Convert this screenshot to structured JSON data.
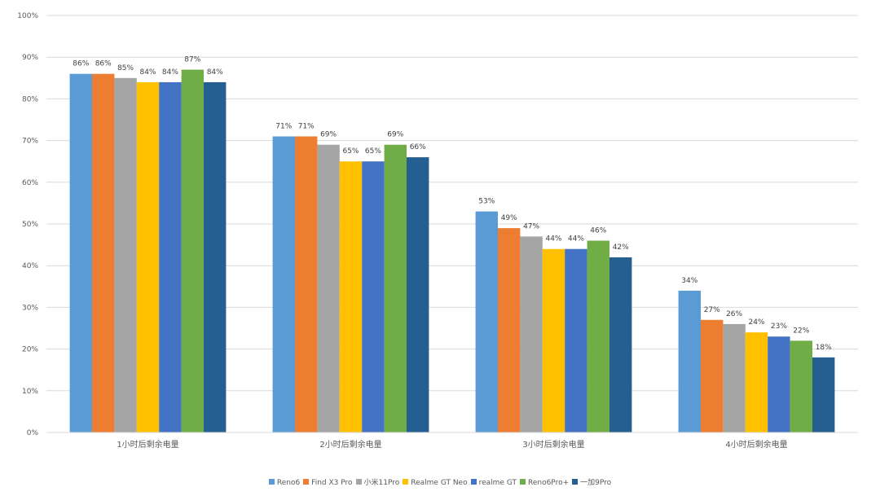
{
  "chart_data": {
    "type": "bar",
    "title": "",
    "xlabel": "",
    "ylabel": "",
    "ylim": [
      0,
      100
    ],
    "y_ticks": [
      "0%",
      "10%",
      "20%",
      "30%",
      "40%",
      "50%",
      "60%",
      "70%",
      "80%",
      "90%",
      "100%"
    ],
    "y_tick_values": [
      0,
      10,
      20,
      30,
      40,
      50,
      60,
      70,
      80,
      90,
      100
    ],
    "grid": true,
    "legend_position": "bottom",
    "categories": [
      "1小时后剩余电量",
      "2小时后剩余电量",
      "3小时后剩余电量",
      "4小时后剩余电量"
    ],
    "series": [
      {
        "name": "Reno6",
        "color": "#5B9BD5",
        "values": [
          86,
          71,
          53,
          34
        ],
        "labels": [
          "86%",
          "71%",
          "53%",
          "34%"
        ]
      },
      {
        "name": "Find X3 Pro",
        "color": "#ED7D31",
        "values": [
          86,
          71,
          49,
          27
        ],
        "labels": [
          "86%",
          "71%",
          "49%",
          "27%"
        ]
      },
      {
        "name": "小米11Pro",
        "color": "#A5A5A5",
        "values": [
          85,
          69,
          47,
          26
        ],
        "labels": [
          "85%",
          "69%",
          "47%",
          "26%"
        ]
      },
      {
        "name": "Realme GT Neo",
        "color": "#FFC000",
        "values": [
          84,
          65,
          44,
          24
        ],
        "labels": [
          "84%",
          "65%",
          "44%",
          "24%"
        ]
      },
      {
        "name": "realme GT",
        "color": "#4472C4",
        "values": [
          84,
          65,
          44,
          23
        ],
        "labels": [
          "84%",
          "65%",
          "44%",
          "23%"
        ]
      },
      {
        "name": "Reno6Pro+",
        "color": "#70AD47",
        "values": [
          87,
          69,
          46,
          22
        ],
        "labels": [
          "87%",
          "69%",
          "46%",
          "22%"
        ]
      },
      {
        "name": "一加9Pro",
        "color": "#255E91",
        "values": [
          84,
          66,
          42,
          18
        ],
        "labels": [
          "84%",
          "66%",
          "42%",
          "18%"
        ]
      }
    ]
  }
}
